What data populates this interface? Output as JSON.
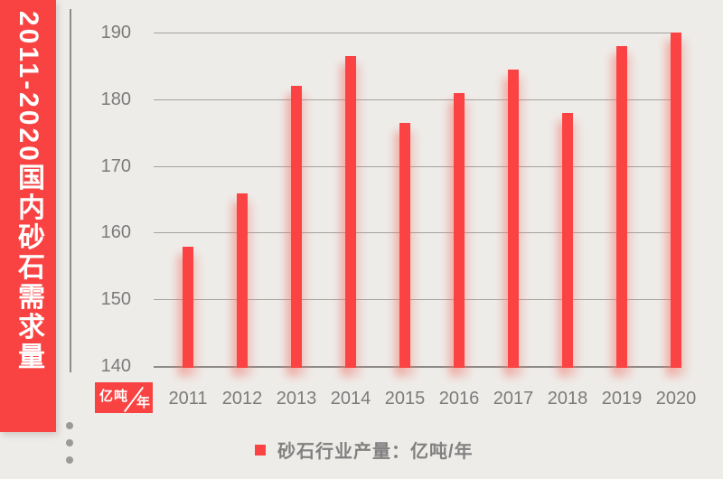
{
  "banner": {
    "title": "2011-2020国内砂石需求量"
  },
  "axis_unit_badge": {
    "numerator": "亿吨",
    "denominator": "年"
  },
  "legend": {
    "label": "砂石行业产量：亿吨/年"
  },
  "colors": {
    "accent_red": "#F94343",
    "bar_red": "#FB4343",
    "background": "#EEECE9",
    "gridline": "#A5A29E",
    "axis_line": "#8E8B88",
    "label_gray": "#7B7B7B",
    "legend_text_gray": "#808080"
  },
  "chart_data": {
    "type": "bar",
    "title": "2011-2020国内砂石需求量",
    "categories": [
      "2011",
      "2012",
      "2013",
      "2014",
      "2015",
      "2016",
      "2017",
      "2018",
      "2019",
      "2020"
    ],
    "series": [
      {
        "name": "砂石行业产量",
        "unit": "亿吨/年",
        "values": [
          158,
          166,
          182,
          186.5,
          176.5,
          181,
          184.5,
          178,
          188,
          190
        ]
      }
    ],
    "xlabel": "",
    "ylabel": "亿吨/年",
    "ylim": [
      140,
      190
    ],
    "yticks": [
      140,
      150,
      160,
      170,
      180,
      190
    ],
    "grid": "horizontal",
    "legend_position": "bottom"
  },
  "decor": {
    "dots": 3
  }
}
